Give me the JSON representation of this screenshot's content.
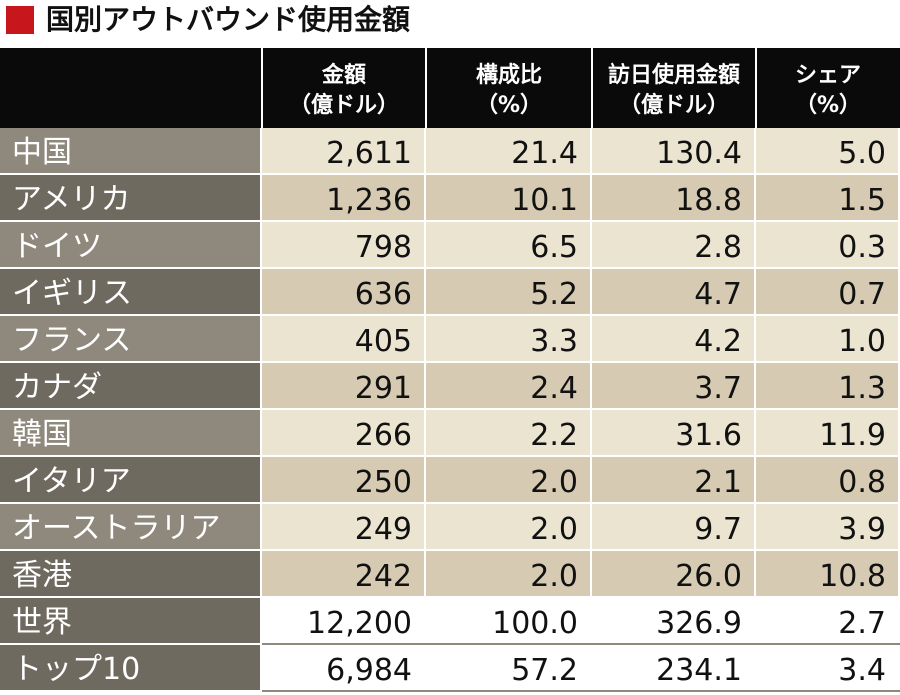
{
  "title": "国別アウトバウンド使用金額",
  "colors": {
    "accent": "#c8161d",
    "header_bg": "#0a0a0a",
    "label_bg_odd": "#8e897c",
    "label_bg_even": "#6f6a60",
    "data_bg_odd": "#ebe4d0",
    "data_bg_even": "#d6cbb2",
    "total_label_bg": "#6f6a60",
    "total_data_bg": "#ffffff"
  },
  "chart_data": {
    "type": "table",
    "columns": [
      {
        "line1": "金額",
        "line2": "（億ドル）"
      },
      {
        "line1": "構成比",
        "line2": "（%）"
      },
      {
        "line1": "訪日使用金額",
        "line2": "（億ドル）"
      },
      {
        "line1": "シェア",
        "line2": "（%）"
      }
    ],
    "rows": [
      {
        "label": "中国",
        "values": [
          "2,611",
          "21.4",
          "130.4",
          "5.0"
        ]
      },
      {
        "label": "アメリカ",
        "values": [
          "1,236",
          "10.1",
          "18.8",
          "1.5"
        ]
      },
      {
        "label": "ドイツ",
        "values": [
          "798",
          "6.5",
          "2.8",
          "0.3"
        ]
      },
      {
        "label": "イギリス",
        "values": [
          "636",
          "5.2",
          "4.7",
          "0.7"
        ]
      },
      {
        "label": "フランス",
        "values": [
          "405",
          "3.3",
          "4.2",
          "1.0"
        ]
      },
      {
        "label": "カナダ",
        "values": [
          "291",
          "2.4",
          "3.7",
          "1.3"
        ]
      },
      {
        "label": "韓国",
        "values": [
          "266",
          "2.2",
          "31.6",
          "11.9"
        ]
      },
      {
        "label": "イタリア",
        "values": [
          "250",
          "2.0",
          "2.1",
          "0.8"
        ]
      },
      {
        "label": "オーストラリア",
        "values": [
          "249",
          "2.0",
          "9.7",
          "3.9"
        ]
      },
      {
        "label": "香港",
        "values": [
          "242",
          "2.0",
          "26.0",
          "10.8"
        ]
      }
    ],
    "totals": [
      {
        "label": "世界",
        "values": [
          "12,200",
          "100.0",
          "326.9",
          "2.7"
        ]
      },
      {
        "label": "トップ10",
        "values": [
          "6,984",
          "57.2",
          "234.1",
          "3.4"
        ]
      }
    ]
  }
}
